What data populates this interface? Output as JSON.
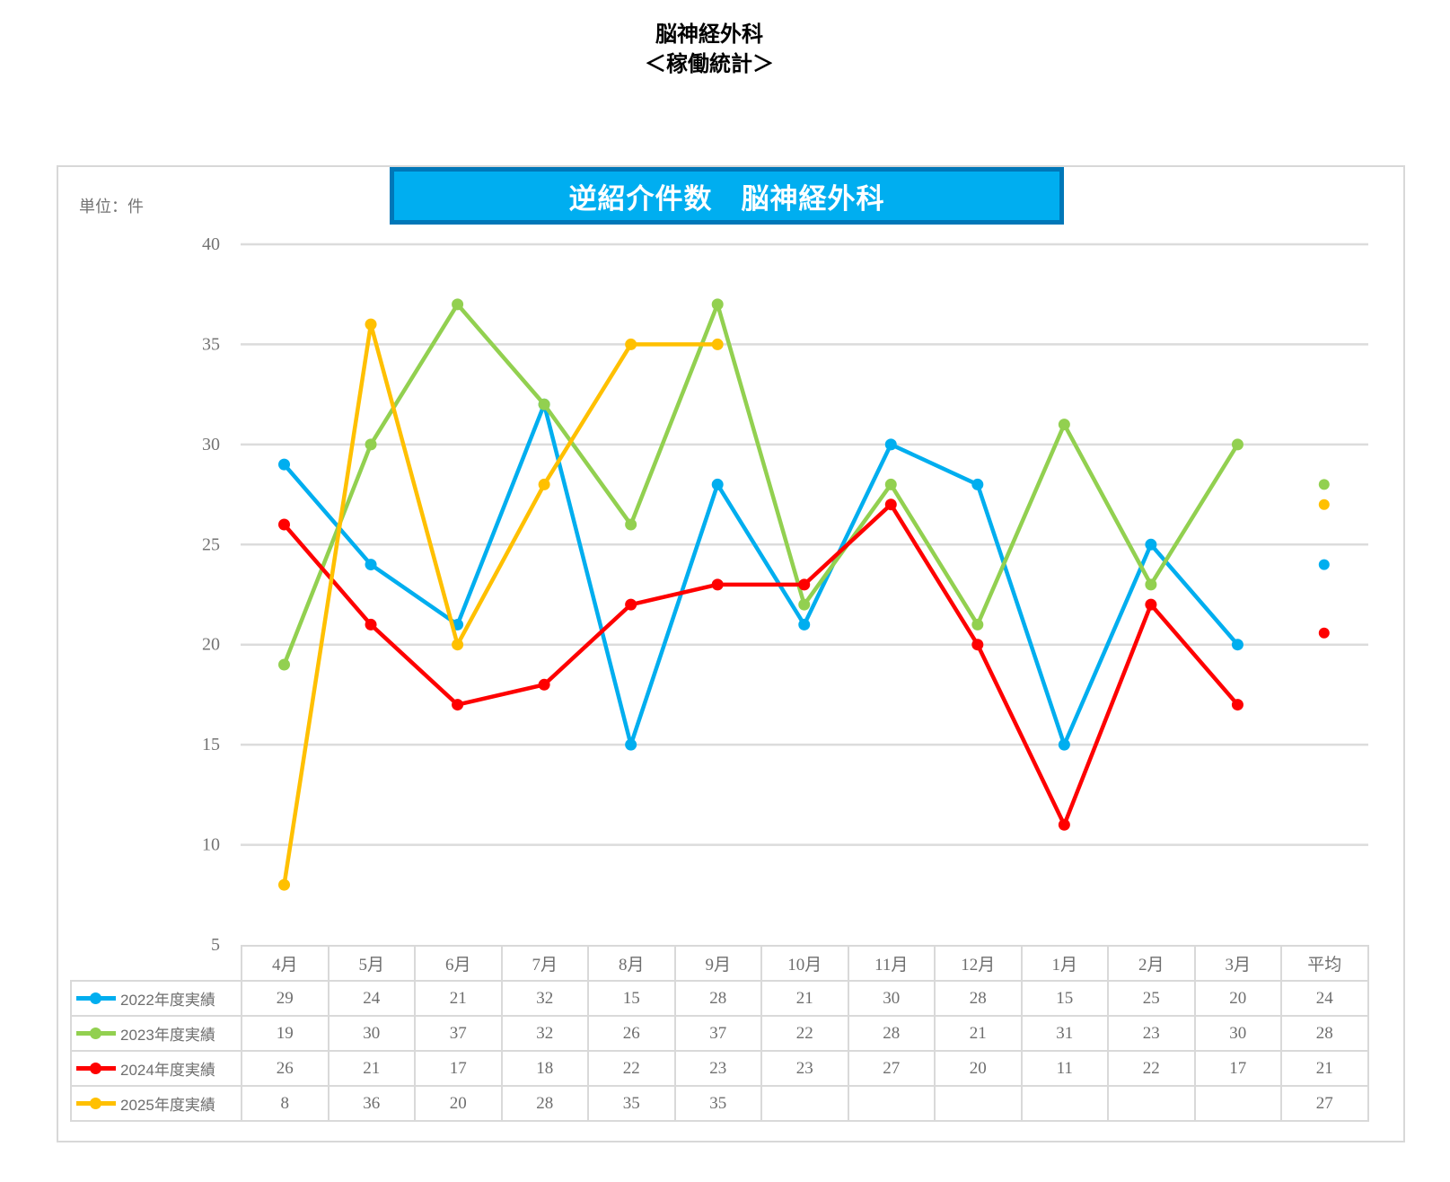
{
  "page_title": {
    "line1": "脳神経外科",
    "line2": "＜稼働統計＞"
  },
  "chart": {
    "banner_title": "逆紹介件数　脳神経外科",
    "unit_label": "単位：件",
    "colors": {
      "banner_fill": "#00AEF0",
      "banner_border": "#0077B8",
      "grid": "#DCDCDC",
      "frame_border": "#D8D8D8",
      "axis_text": "#737373",
      "table_text": "#6E6E6E"
    }
  },
  "chart_data": {
    "type": "line",
    "title": "逆紹介件数　脳神経外科",
    "unit": "件",
    "categories": [
      "4月",
      "5月",
      "6月",
      "7月",
      "8月",
      "9月",
      "10月",
      "11月",
      "12月",
      "1月",
      "2月",
      "3月"
    ],
    "average_column_label": "平均",
    "ylim": [
      5,
      40
    ],
    "ytick_interval": 5,
    "grid": true,
    "legend_position": "table-left",
    "series": [
      {
        "name": "2022年度実績",
        "color": "#00AEEF",
        "values": [
          29,
          24,
          21,
          32,
          15,
          28,
          21,
          30,
          28,
          15,
          25,
          20
        ],
        "average_display": 24
      },
      {
        "name": "2023年度実績",
        "color": "#92D050",
        "values": [
          19,
          30,
          37,
          32,
          26,
          37,
          22,
          28,
          21,
          31,
          23,
          30
        ],
        "average_display": 28
      },
      {
        "name": "2024年度実績",
        "color": "#FE0000",
        "values": [
          26,
          21,
          17,
          18,
          22,
          23,
          23,
          27,
          20,
          11,
          22,
          17
        ],
        "average_display": 21
      },
      {
        "name": "2025年度実績",
        "color": "#FFC000",
        "values": [
          8,
          36,
          20,
          28,
          35,
          35,
          null,
          null,
          null,
          null,
          null,
          null
        ],
        "average_display": 27
      }
    ]
  }
}
